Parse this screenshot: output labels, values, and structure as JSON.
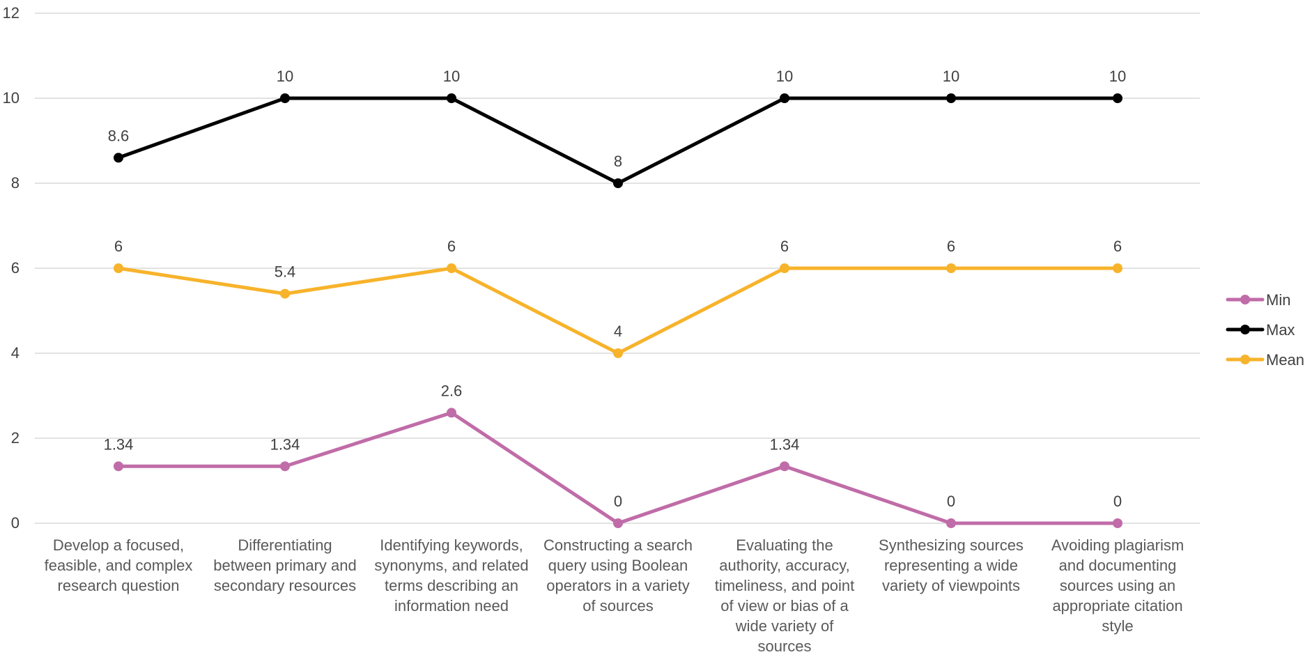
{
  "chart_data": {
    "type": "line",
    "title": "",
    "xlabel": "",
    "ylabel": "",
    "ylim": [
      0,
      12
    ],
    "yticks": [
      0,
      2,
      4,
      6,
      8,
      10,
      12
    ],
    "grid": true,
    "legend_position": "right",
    "categories": [
      [
        "Develop a focused,",
        "feasible, and complex",
        "research question"
      ],
      [
        "Differentiating",
        "between primary and",
        "secondary resources"
      ],
      [
        "Identifying keywords,",
        "synonyms, and related",
        "terms describing an",
        "information need"
      ],
      [
        "Constructing a search",
        "query using Boolean",
        "operators in a variety",
        "of sources"
      ],
      [
        "Evaluating the",
        "authority, accuracy,",
        "timeliness, and point",
        "of view or bias of a",
        "wide variety of",
        "sources"
      ],
      [
        "Synthesizing sources",
        "representing a wide",
        "variety of viewpoints"
      ],
      [
        "Avoiding plagiarism",
        "and documenting",
        "sources using an",
        "appropriate citation",
        "style"
      ]
    ],
    "series": [
      {
        "name": "Min",
        "color": "#c06ca8",
        "values": [
          1.34,
          1.34,
          2.6,
          0,
          1.34,
          0,
          0
        ],
        "labels": [
          "1.34",
          "1.34",
          "2.6",
          "0",
          "1.34",
          "0",
          "0"
        ]
      },
      {
        "name": "Max",
        "color": "#000000",
        "values": [
          8.6,
          10,
          10,
          8,
          10,
          10,
          10
        ],
        "labels": [
          "8.6",
          "10",
          "10",
          "8",
          "10",
          "10",
          "10"
        ]
      },
      {
        "name": "Mean",
        "color": "#f7b32b",
        "values": [
          6,
          5.4,
          6,
          4,
          6,
          6,
          6
        ],
        "labels": [
          "6",
          "5.4",
          "6",
          "4",
          "6",
          "6",
          "6"
        ]
      }
    ]
  }
}
